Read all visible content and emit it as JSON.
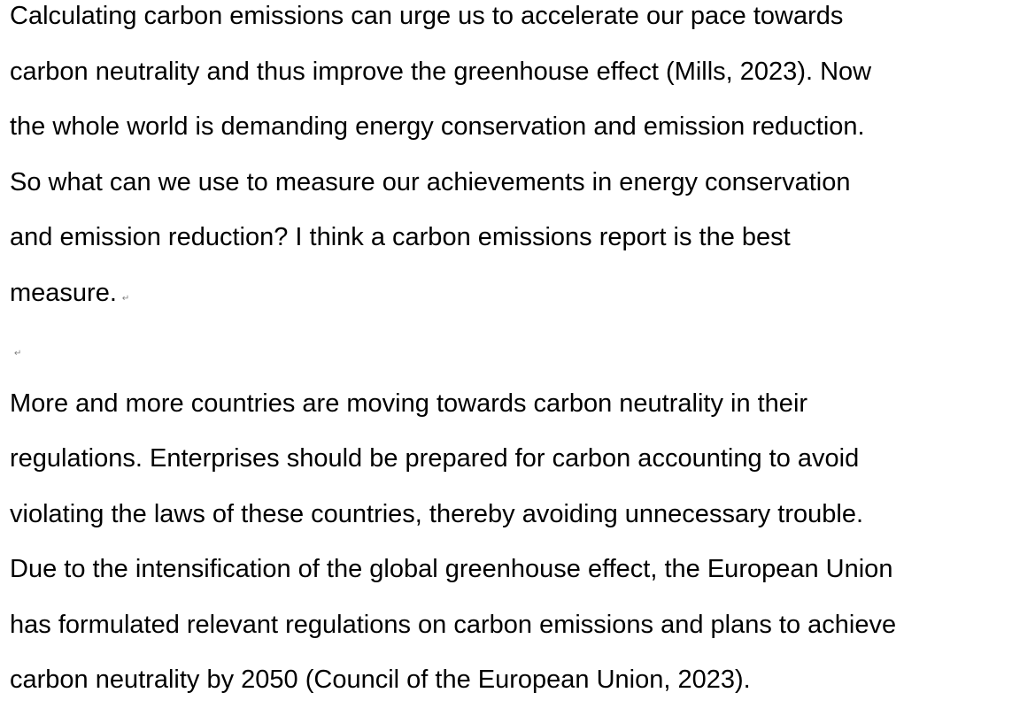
{
  "document": {
    "paragraph_mark": "↵",
    "paragraphs": [
      {
        "lines": [
          "Calculating carbon emissions can urge us to accelerate our pace towards",
          "carbon neutrality and thus improve the greenhouse effect (Mills, 2023). Now",
          "the whole world is demanding energy conservation and emission reduction.",
          "So what can we use to measure our achievements in energy conservation",
          "and emission reduction? I think a carbon emissions report is the best",
          "measure."
        ]
      },
      {
        "lines": []
      },
      {
        "lines": [
          "More and more countries are moving towards carbon neutrality in their",
          "regulations. Enterprises should be prepared for carbon accounting to avoid",
          "violating the laws of these countries, thereby avoiding unnecessary trouble.",
          "Due to the intensification of the global greenhouse effect, the European Union",
          "has formulated relevant regulations on carbon emissions and plans to achieve",
          "carbon neutrality by 2050 (Council of the European Union, 2023)."
        ]
      }
    ]
  }
}
